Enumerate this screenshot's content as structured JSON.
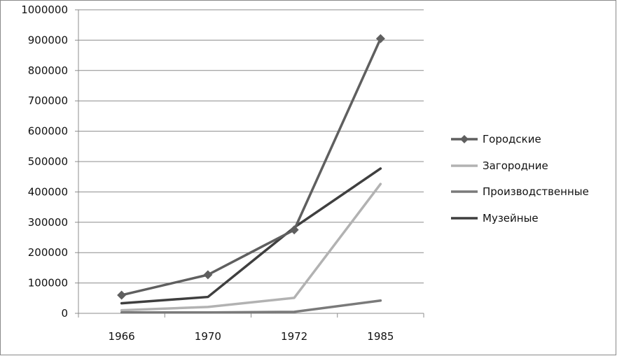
{
  "chart_data": {
    "type": "line",
    "title": "",
    "xlabel": "",
    "ylabel": "",
    "categories": [
      "1966",
      "1970",
      "1972",
      "1985"
    ],
    "ylim": [
      0,
      1000000
    ],
    "yticks": [
      0,
      100000,
      200000,
      300000,
      400000,
      500000,
      600000,
      700000,
      800000,
      900000,
      1000000
    ],
    "ytick_labels": [
      "0",
      "100000",
      "200000",
      "300000",
      "400000",
      "500000",
      "600000",
      "700000",
      "800000",
      "900000",
      "1000000"
    ],
    "grid": true,
    "legend_position": "right",
    "series": [
      {
        "name": "Городские",
        "values": [
          60000,
          127000,
          275000,
          905000
        ],
        "color": "#5f5f5f",
        "marker": "diamond"
      },
      {
        "name": "Загородние",
        "values": [
          10000,
          21000,
          51000,
          426000
        ],
        "color": "#b2b2b2",
        "marker": "none"
      },
      {
        "name": "Производственные",
        "values": [
          3000,
          3000,
          5000,
          42000
        ],
        "color": "#7a7a7a",
        "marker": "none"
      },
      {
        "name": "Музейные",
        "values": [
          33000,
          54000,
          283000,
          477000
        ],
        "color": "#3f3f3f",
        "marker": "none"
      }
    ]
  }
}
